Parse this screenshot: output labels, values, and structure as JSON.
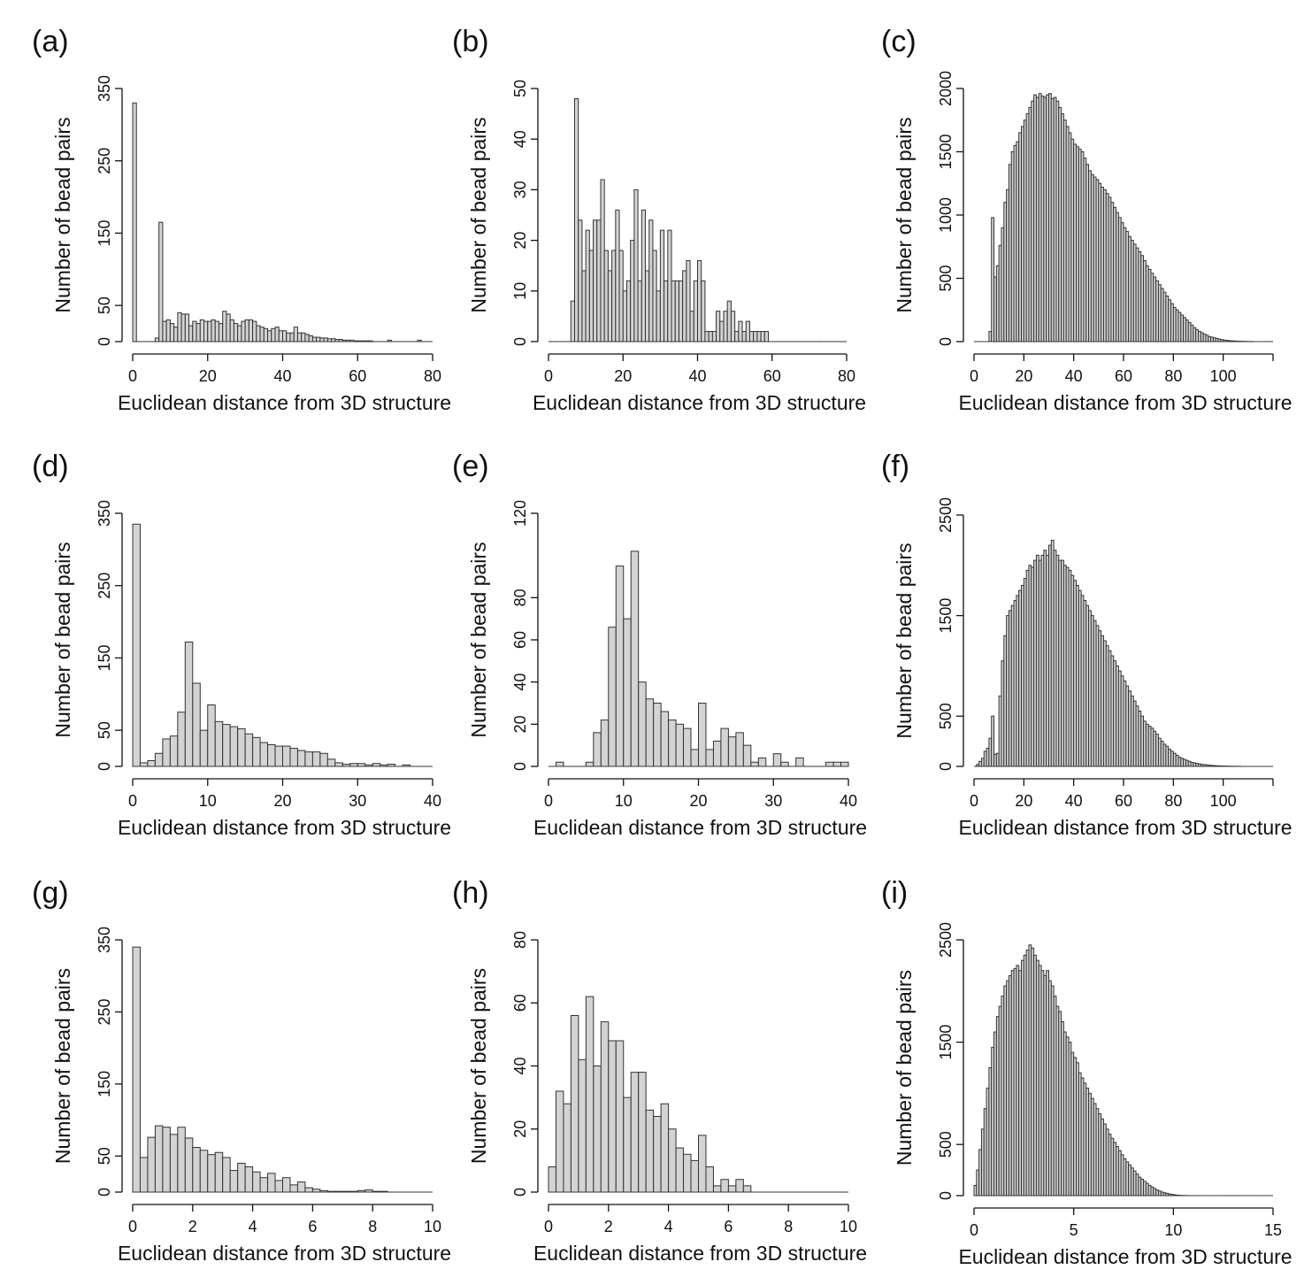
{
  "figure": {
    "background": "#ffffff",
    "bar_fill": "#d3d3d3",
    "bar_stroke": "#333333"
  },
  "chart_data": [
    {
      "type": "bar",
      "panel_label": "(a)",
      "xlabel": "Euclidean distance from 3D structure",
      "ylabel": "Number of bead pairs",
      "xlim": [
        0,
        80
      ],
      "ylim": [
        0,
        350
      ],
      "xticks": [
        0,
        20,
        40,
        60,
        80
      ],
      "xtick_labels": [
        "0",
        "20",
        "40",
        "60",
        "80"
      ],
      "yticks": [
        0,
        50,
        150,
        250,
        350
      ],
      "ytick_labels": [
        "0",
        "50",
        "150",
        "250",
        "350"
      ],
      "bin_start": 0,
      "bin_width": 1,
      "values": [
        330,
        0,
        0,
        0,
        0,
        0,
        5,
        165,
        28,
        30,
        25,
        20,
        40,
        38,
        38,
        22,
        28,
        25,
        30,
        28,
        28,
        30,
        28,
        25,
        42,
        38,
        30,
        25,
        22,
        28,
        30,
        30,
        28,
        22,
        20,
        18,
        15,
        18,
        20,
        15,
        15,
        12,
        12,
        20,
        12,
        12,
        10,
        8,
        6,
        6,
        5,
        5,
        4,
        4,
        3,
        3,
        2,
        2,
        2,
        1,
        1,
        1,
        1,
        1,
        0,
        0,
        0,
        0,
        2,
        0,
        0,
        0,
        0,
        0,
        0,
        0,
        2,
        0,
        0,
        0
      ]
    },
    {
      "type": "bar",
      "panel_label": "(b)",
      "xlabel": "Euclidean distance from 3D structure",
      "ylabel": "Number of bead pairs",
      "xlim": [
        0,
        80
      ],
      "ylim": [
        0,
        50
      ],
      "xticks": [
        0,
        20,
        40,
        60,
        80
      ],
      "xtick_labels": [
        "0",
        "20",
        "40",
        "60",
        "80"
      ],
      "yticks": [
        0,
        10,
        20,
        30,
        40,
        50
      ],
      "ytick_labels": [
        "0",
        "10",
        "20",
        "30",
        "40",
        "50"
      ],
      "bin_start": 0,
      "bin_width": 1,
      "values": [
        0,
        0,
        0,
        0,
        0,
        0,
        8,
        48,
        24,
        14,
        22,
        18,
        24,
        24,
        32,
        18,
        14,
        18,
        26,
        18,
        10,
        12,
        20,
        30,
        12,
        26,
        14,
        24,
        18,
        10,
        22,
        12,
        22,
        12,
        12,
        12,
        14,
        16,
        6,
        12,
        16,
        12,
        2,
        2,
        2,
        6,
        4,
        6,
        8,
        6,
        2,
        4,
        2,
        4,
        2,
        2,
        2,
        2,
        2,
        0,
        0,
        0,
        0,
        0,
        0,
        0,
        0,
        0,
        0,
        0,
        0,
        0,
        0,
        0,
        0,
        0,
        0,
        0,
        0,
        0
      ]
    },
    {
      "type": "bar",
      "panel_label": "(c)",
      "xlabel": "Euclidean distance from 3D structure",
      "ylabel": "Number of bead pairs",
      "xlim": [
        0,
        120
      ],
      "ylim": [
        0,
        2000
      ],
      "xticks": [
        0,
        20,
        40,
        60,
        80,
        100,
        120
      ],
      "xtick_labels": [
        "0",
        "20",
        "40",
        "60",
        "80",
        "100",
        ""
      ],
      "yticks": [
        0,
        500,
        1000,
        1500,
        2000
      ],
      "ytick_labels": [
        "0",
        "500",
        "1000",
        "1500",
        "2000"
      ],
      "bin_start": 0,
      "bin_width": 1,
      "values": [
        0,
        0,
        0,
        0,
        0,
        0,
        80,
        980,
        510,
        600,
        760,
        900,
        1100,
        1200,
        1400,
        1500,
        1550,
        1580,
        1650,
        1700,
        1750,
        1800,
        1850,
        1900,
        1950,
        1930,
        1960,
        1940,
        1930,
        1950,
        1960,
        1920,
        1930,
        1900,
        1850,
        1800,
        1750,
        1700,
        1650,
        1600,
        1560,
        1540,
        1520,
        1500,
        1450,
        1400,
        1350,
        1320,
        1300,
        1280,
        1250,
        1220,
        1200,
        1170,
        1140,
        1100,
        1060,
        1020,
        980,
        940,
        900,
        870,
        830,
        800,
        770,
        740,
        710,
        680,
        640,
        600,
        570,
        540,
        510,
        480,
        450,
        420,
        390,
        360,
        330,
        300,
        270,
        250,
        230,
        210,
        190,
        170,
        150,
        130,
        110,
        95,
        80,
        70,
        60,
        50,
        40,
        35,
        30,
        25,
        20,
        16,
        12,
        10,
        8,
        6,
        5,
        4,
        3,
        2,
        2,
        1,
        1,
        1,
        0,
        0,
        0,
        0,
        0,
        0,
        0,
        0
      ]
    },
    {
      "type": "bar",
      "panel_label": "(d)",
      "xlabel": "Euclidean distance from 3D structure",
      "ylabel": "Number of bead pairs",
      "xlim": [
        0,
        40
      ],
      "ylim": [
        0,
        350
      ],
      "xticks": [
        0,
        10,
        20,
        30,
        40
      ],
      "xtick_labels": [
        "0",
        "10",
        "20",
        "30",
        "40"
      ],
      "yticks": [
        0,
        50,
        150,
        250,
        350
      ],
      "ytick_labels": [
        "0",
        "50",
        "150",
        "250",
        "350"
      ],
      "bin_start": 0,
      "bin_width": 1,
      "values": [
        335,
        5,
        8,
        18,
        38,
        42,
        75,
        172,
        115,
        50,
        85,
        62,
        58,
        55,
        52,
        45,
        40,
        33,
        30,
        28,
        28,
        25,
        22,
        20,
        20,
        18,
        10,
        5,
        3,
        4,
        4,
        2,
        4,
        2,
        3,
        0,
        2,
        0,
        0,
        0
      ]
    },
    {
      "type": "bar",
      "panel_label": "(e)",
      "xlabel": "Euclidean distance from 3D structure",
      "ylabel": "Number of bead pairs",
      "xlim": [
        0,
        40
      ],
      "ylim": [
        0,
        120
      ],
      "xticks": [
        0,
        10,
        20,
        30,
        40
      ],
      "xtick_labels": [
        "0",
        "10",
        "20",
        "30",
        "40"
      ],
      "yticks": [
        0,
        20,
        40,
        60,
        80,
        120
      ],
      "ytick_labels": [
        "0",
        "20",
        "40",
        "60",
        "80",
        "120"
      ],
      "bin_start": 0,
      "bin_width": 1,
      "values": [
        0,
        2,
        0,
        0,
        0,
        2,
        16,
        22,
        66,
        95,
        70,
        102,
        40,
        32,
        30,
        26,
        22,
        20,
        18,
        8,
        30,
        8,
        12,
        18,
        14,
        16,
        10,
        2,
        4,
        0,
        6,
        2,
        0,
        4,
        0,
        0,
        0,
        2,
        2,
        2
      ]
    },
    {
      "type": "bar",
      "panel_label": "(f)",
      "xlabel": "Euclidean distance from 3D structure",
      "ylabel": "Number of bead pairs",
      "xlim": [
        0,
        120
      ],
      "ylim": [
        0,
        2500
      ],
      "xticks": [
        0,
        20,
        40,
        60,
        80,
        100,
        120
      ],
      "xtick_labels": [
        "0",
        "20",
        "40",
        "60",
        "80",
        "100",
        ""
      ],
      "yticks": [
        0,
        500,
        1500,
        2500
      ],
      "ytick_labels": [
        "0",
        "500",
        "1500",
        "2500"
      ],
      "bin_start": 0,
      "bin_width": 1,
      "values": [
        0,
        20,
        50,
        80,
        150,
        180,
        280,
        500,
        120,
        130,
        700,
        1050,
        1300,
        1500,
        1550,
        1600,
        1650,
        1700,
        1750,
        1800,
        1870,
        1950,
        2000,
        1980,
        2050,
        2100,
        2050,
        2100,
        2150,
        2100,
        2200,
        2250,
        2150,
        2100,
        2050,
        2050,
        2000,
        1980,
        1950,
        1900,
        1850,
        1800,
        1750,
        1700,
        1650,
        1600,
        1550,
        1500,
        1450,
        1400,
        1350,
        1300,
        1250,
        1200,
        1150,
        1100,
        1050,
        1000,
        950,
        900,
        850,
        800,
        750,
        700,
        650,
        600,
        550,
        500,
        450,
        420,
        400,
        380,
        350,
        320,
        280,
        250,
        220,
        200,
        170,
        150,
        130,
        110,
        90,
        80,
        70,
        60,
        50,
        40,
        35,
        30,
        25,
        20,
        18,
        15,
        12,
        10,
        8,
        6,
        5,
        4,
        3,
        3,
        2,
        2,
        1,
        1,
        1,
        0,
        0,
        0,
        0,
        0,
        0,
        0,
        0,
        0,
        0,
        0,
        0,
        0
      ]
    },
    {
      "type": "bar",
      "panel_label": "(g)",
      "xlabel": "Euclidean distance from 3D structure",
      "ylabel": "Number of bead pairs",
      "xlim": [
        0,
        10
      ],
      "ylim": [
        0,
        350
      ],
      "xticks": [
        0,
        2,
        4,
        6,
        8,
        10
      ],
      "xtick_labels": [
        "0",
        "2",
        "4",
        "6",
        "8",
        "10"
      ],
      "yticks": [
        0,
        50,
        150,
        250,
        350
      ],
      "ytick_labels": [
        "0",
        "50",
        "150",
        "250",
        "350"
      ],
      "bin_start": 0,
      "bin_width": 0.25,
      "values": [
        340,
        48,
        76,
        92,
        90,
        80,
        90,
        75,
        62,
        58,
        52,
        55,
        48,
        30,
        40,
        35,
        28,
        20,
        26,
        16,
        20,
        10,
        14,
        6,
        4,
        2,
        1,
        1,
        1,
        1,
        2,
        3,
        1,
        1,
        0,
        0,
        0,
        0,
        0,
        0
      ]
    },
    {
      "type": "bar",
      "panel_label": "(h)",
      "xlabel": "Euclidean distance from 3D structure",
      "ylabel": "Number of bead pairs",
      "xlim": [
        0,
        10
      ],
      "ylim": [
        0,
        80
      ],
      "xticks": [
        0,
        2,
        4,
        6,
        8,
        10
      ],
      "xtick_labels": [
        "0",
        "2",
        "4",
        "6",
        "8",
        "10"
      ],
      "yticks": [
        0,
        20,
        40,
        60,
        80
      ],
      "ytick_labels": [
        "0",
        "20",
        "40",
        "60",
        "80"
      ],
      "bin_start": 0,
      "bin_width": 0.25,
      "values": [
        8,
        32,
        28,
        56,
        42,
        62,
        40,
        54,
        48,
        48,
        30,
        38,
        38,
        26,
        24,
        28,
        20,
        14,
        12,
        10,
        18,
        8,
        2,
        4,
        2,
        4,
        2,
        0,
        0,
        0,
        0,
        0,
        0,
        0,
        0,
        0,
        0,
        0,
        0,
        0
      ]
    },
    {
      "type": "bar",
      "panel_label": "(i)",
      "xlabel": "Euclidean distance from 3D structure",
      "ylabel": "Number of bead pairs",
      "xlim": [
        0,
        15
      ],
      "ylim": [
        0,
        2500
      ],
      "xticks": [
        0,
        5,
        10,
        15
      ],
      "xtick_labels": [
        "0",
        "5",
        "10",
        "15"
      ],
      "yticks": [
        0,
        500,
        1500,
        2500
      ],
      "ytick_labels": [
        "0",
        "500",
        "1500",
        "2500"
      ],
      "bin_start": 0,
      "bin_width": 0.125,
      "values": [
        100,
        250,
        450,
        650,
        850,
        1050,
        1250,
        1450,
        1600,
        1750,
        1850,
        1950,
        2050,
        2100,
        2150,
        2200,
        2220,
        2250,
        2200,
        2300,
        2350,
        2400,
        2450,
        2420,
        2350,
        2300,
        2250,
        2200,
        2150,
        2200,
        2100,
        2050,
        1950,
        1850,
        1800,
        1700,
        1600,
        1550,
        1500,
        1400,
        1350,
        1300,
        1200,
        1150,
        1100,
        1050,
        1000,
        950,
        900,
        850,
        800,
        750,
        700,
        650,
        600,
        560,
        520,
        480,
        440,
        400,
        360,
        330,
        300,
        270,
        240,
        210,
        180,
        160,
        140,
        120,
        100,
        85,
        70,
        55,
        45,
        35,
        28,
        22,
        16,
        12,
        8,
        5,
        3,
        2,
        1,
        1,
        0,
        0,
        0,
        0,
        0,
        0,
        0,
        0,
        0,
        0,
        0,
        0,
        0,
        0,
        0,
        0,
        0,
        0,
        0,
        0,
        0,
        0,
        0,
        0,
        0,
        0,
        0,
        0,
        0,
        0,
        0,
        0,
        0,
        0
      ]
    }
  ]
}
